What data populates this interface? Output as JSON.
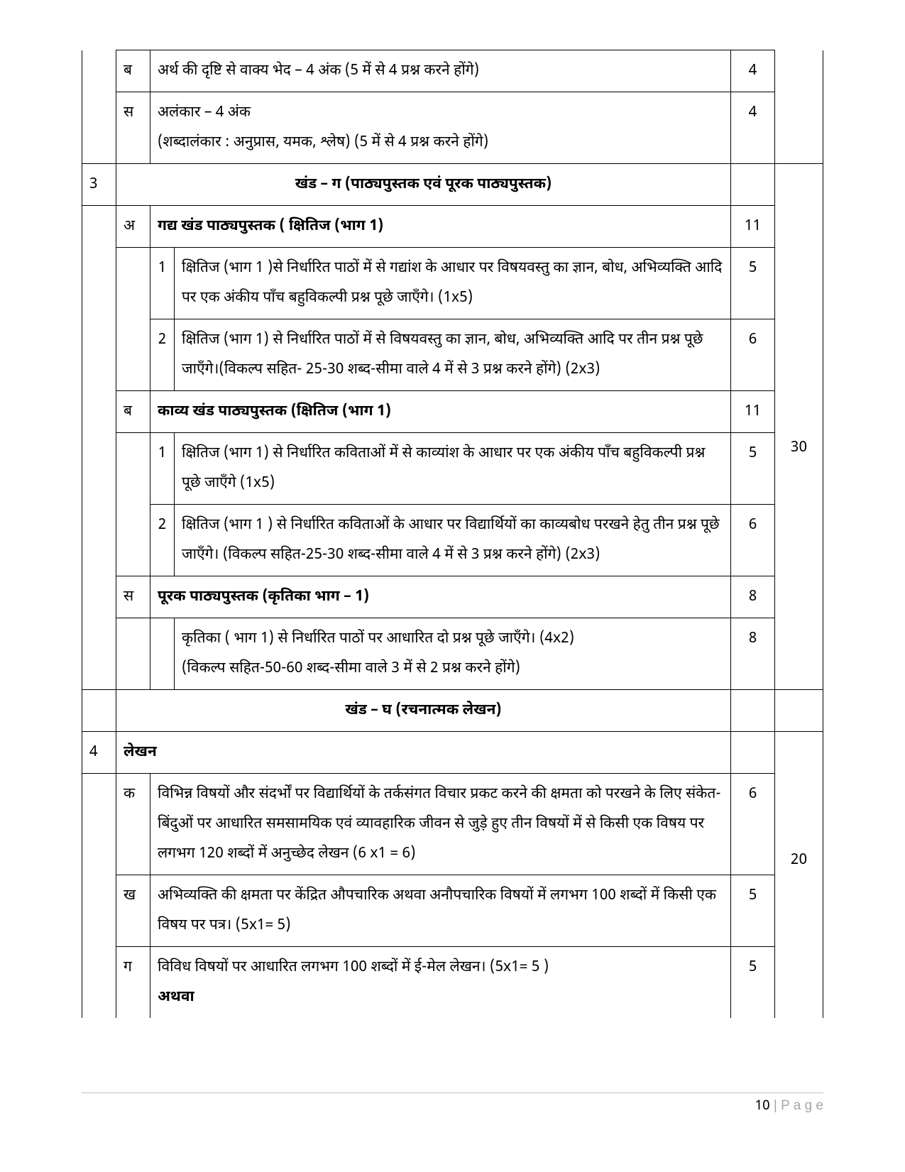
{
  "rows": {
    "r1_col2": "ब",
    "r1_col4": "अर्थ की दृष्टि से वाक्य भेद – 4 अंक (5 में से 4 प्रश्न करने होंगे)",
    "r1_col5": "4",
    "r2_col2": "स",
    "r2_col4_l1": "अलंकार – 4 अंक",
    "r2_col4_l2": "(शब्दालंकार : अनुप्रास, यमक, श्लेष) (5 में से 4 प्रश्न करने होंगे)",
    "r2_col5": "4",
    "r3_col1": "3",
    "r3_header": "खंड – ग  (पाठ्यपुस्तक एवं पूरक पाठ्यपुस्तक)",
    "r4_col2": "अ",
    "r4_col4": "गद्य खंड पाठ्यपुस्तक ( क्षितिज (भाग 1)",
    "r4_col5": "11",
    "r5_col3": "1",
    "r5_col4": "क्षितिज (भाग 1 )से निर्धारित पाठों में से गद्यांश के आधार पर विषयवस्तु का ज्ञान, बोध, अभिव्यक्ति आदि पर एक अंकीय पाँच बहुविकल्पी प्रश्न पूछे जाएँगे। (1x5)",
    "r5_col5": "5",
    "r6_col3": "2",
    "r6_col4": "क्षितिज (भाग 1) से निर्धारित पाठों में से विषयवस्तु का ज्ञान, बोध, अभिव्यक्ति आदि पर तीन प्रश्न पूछे जाएँगे।(विकल्प सहित- 25-30 शब्द-सीमा वाले 4 में से 3 प्रश्न करने होंगे)  (2x3)",
    "r6_col5": "6",
    "r7_col2": "ब",
    "r7_col4": "काव्य खंड पाठ्यपुस्तक (क्षितिज (भाग 1)",
    "r7_col5": "11",
    "r8_col3": "1",
    "r8_col4": "क्षितिज (भाग 1)  से निर्धारित कविताओं में से काव्यांश के आधार पर एक अंकीय पाँच बहुविकल्पी प्रश्न पूछे जाएँगे (1x5)",
    "r8_col5": "5",
    "r9_col3": "2",
    "r9_col4": "क्षितिज (भाग 1 ) से निर्धारित कविताओं के आधार पर विद्यार्थियों का काव्यबोध परखने हेतु तीन प्रश्न पूछे जाएँगे।  (विकल्प सहित-25-30 शब्द-सीमा वाले 4 में से 3 प्रश्न करने होंगे) (2x3)",
    "r9_col5": "6",
    "r10_col2": "स",
    "r10_col4": "पूरक पाठ्यपुस्तक (कृतिका भाग – 1)",
    "r10_col5": "8",
    "r11_col4_l1": "कृतिका ( भाग  1) से निर्धारित पाठों पर आधारित दो प्रश्न पूछे जाएँगे। (4x2)",
    "r11_col4_l2": "(विकल्प सहित-50-60 शब्द-सीमा वाले 3 में से 2 प्रश्न करने होंगे)",
    "r11_col5": "8",
    "r12_header": "खंड – घ (रचनात्मक लेखन)",
    "r13_col1": "4",
    "r13_col2": "लेखन",
    "r14_col2": "क",
    "r14_col4": "विभिन्न विषयों और संदर्भों पर विद्यार्थियों के तर्कसंगत विचार प्रकट करने की क्षमता को परखने के लिए संकेत-बिंदुओं पर आधारित समसामयिक एवं व्यावहारिक जीवन से जुड़े हुए तीन विषयों में से किसी एक विषय पर लगभग 120 शब्दों में अनुच्छेद लेखन  (6 x1 = 6)",
    "r14_col5": "6",
    "r15_col2": "ख",
    "r15_col4": "अभिव्यक्ति की क्षमता पर केंद्रित औपचारिक अथवा अनौपचारिक विषयों में लगभग 100 शब्दों में किसी एक विषय पर पत्र। (5x1= 5)",
    "r15_col5": "5",
    "r16_col2": "ग",
    "r16_col4_l1": "विविध विषयों पर आधारित लगभग 100 शब्दों में ई-मेल लेखन। (5x1= 5 )",
    "r16_col4_l2": "अथवा",
    "r16_col5": "5",
    "section3_total": "30",
    "section4_total": "20"
  },
  "footer": {
    "page_num": "10",
    "page_label": " | P a g e"
  },
  "colors": {
    "border": "#000000",
    "text": "#000000",
    "footer_line": "#bfbfbf",
    "footer_gray": "#a6a6a6",
    "background": "#ffffff"
  }
}
